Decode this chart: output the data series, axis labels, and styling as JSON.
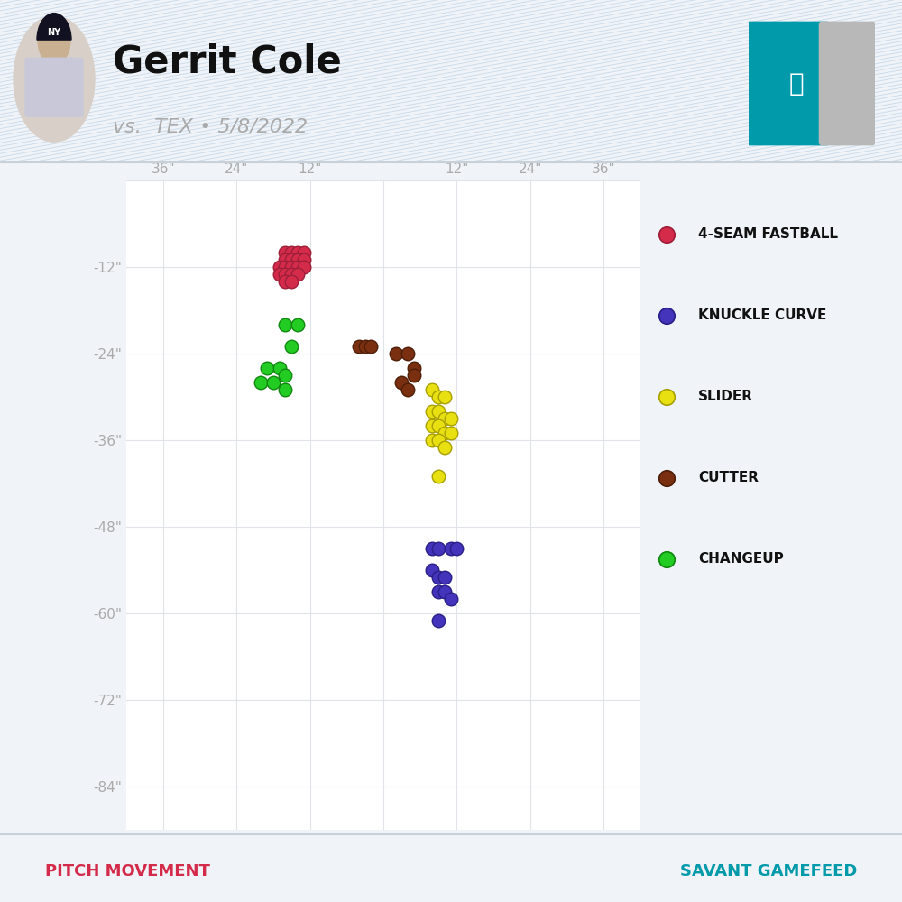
{
  "title": "Gerrit Cole",
  "subtitle": "vs.  TEX • 5/8/2022",
  "pitch_movement_label": "PITCH MOVEMENT",
  "savant_label": "SAVANT GAMEFEED",
  "background_color": "#f0f4f8",
  "header_bg_color": "#e8eef5",
  "plot_bg_color": "#ffffff",
  "stripe_color": "#b0c8e0",
  "separator_color": "#c8d0d8",
  "x_ticks": [
    -36,
    -24,
    -12,
    0,
    12,
    24,
    36
  ],
  "x_tick_labels": [
    "36\"",
    "24\"",
    "12\"",
    "",
    "12\"",
    "24\"",
    "36\""
  ],
  "y_ticks": [
    -84,
    -72,
    -60,
    -48,
    -36,
    -24,
    -12,
    0
  ],
  "y_tick_labels": [
    "-84\"",
    "-72\"",
    "-60\"",
    "-48\"",
    "-36\"",
    "-24\"",
    "-12\"",
    ""
  ],
  "xlim": [
    -42,
    42
  ],
  "ylim": [
    -90,
    0
  ],
  "pitch_types": {
    "4-SEAM FASTBALL": {
      "color": "#d42b4b",
      "edge_color": "#9e1f38",
      "points": [
        [
          -16,
          -10
        ],
        [
          -15,
          -10
        ],
        [
          -14,
          -10
        ],
        [
          -13,
          -10
        ],
        [
          -16,
          -11
        ],
        [
          -15,
          -11
        ],
        [
          -14,
          -11
        ],
        [
          -13,
          -11
        ],
        [
          -17,
          -12
        ],
        [
          -16,
          -12
        ],
        [
          -15,
          -12
        ],
        [
          -14,
          -12
        ],
        [
          -13,
          -12
        ],
        [
          -17,
          -13
        ],
        [
          -16,
          -13
        ],
        [
          -15,
          -13
        ],
        [
          -14,
          -13
        ],
        [
          -16,
          -14
        ],
        [
          -15,
          -14
        ]
      ]
    },
    "KNUCKLE CURVE": {
      "color": "#4433bb",
      "edge_color": "#2a1f88",
      "points": [
        [
          8,
          -51
        ],
        [
          9,
          -51
        ],
        [
          11,
          -51
        ],
        [
          12,
          -51
        ],
        [
          8,
          -54
        ],
        [
          9,
          -55
        ],
        [
          10,
          -55
        ],
        [
          9,
          -57
        ],
        [
          10,
          -57
        ],
        [
          11,
          -58
        ],
        [
          9,
          -61
        ]
      ]
    },
    "SLIDER": {
      "color": "#e8e010",
      "edge_color": "#a8a000",
      "points": [
        [
          8,
          -29
        ],
        [
          9,
          -30
        ],
        [
          10,
          -30
        ],
        [
          8,
          -32
        ],
        [
          9,
          -32
        ],
        [
          10,
          -33
        ],
        [
          11,
          -33
        ],
        [
          8,
          -34
        ],
        [
          9,
          -34
        ],
        [
          10,
          -35
        ],
        [
          11,
          -35
        ],
        [
          8,
          -36
        ],
        [
          9,
          -36
        ],
        [
          10,
          -37
        ],
        [
          9,
          -41
        ]
      ]
    },
    "CUTTER": {
      "color": "#7a3010",
      "edge_color": "#4e1e08",
      "points": [
        [
          -4,
          -23
        ],
        [
          -3,
          -23
        ],
        [
          -2,
          -23
        ],
        [
          2,
          -24
        ],
        [
          4,
          -24
        ],
        [
          5,
          -26
        ],
        [
          3,
          -28
        ],
        [
          5,
          -27
        ],
        [
          4,
          -29
        ]
      ]
    },
    "CHANGEUP": {
      "color": "#22cc22",
      "edge_color": "#108810",
      "points": [
        [
          -16,
          -20
        ],
        [
          -14,
          -20
        ],
        [
          -15,
          -23
        ],
        [
          -19,
          -26
        ],
        [
          -17,
          -26
        ],
        [
          -16,
          -27
        ],
        [
          -20,
          -28
        ],
        [
          -18,
          -28
        ],
        [
          -16,
          -29
        ]
      ]
    }
  },
  "legend_order": [
    "4-SEAM FASTBALL",
    "KNUCKLE CURVE",
    "SLIDER",
    "CUTTER",
    "CHANGEUP"
  ],
  "marker_size": 110,
  "grid_color": "#e0e4e8",
  "tick_color": "#aaaaaa",
  "tick_fontsize": 11,
  "title_color": "#111111",
  "subtitle_color": "#aaaaaa",
  "pitch_movement_color": "#d42b4b",
  "savant_color": "#009aaa",
  "teal_logo": "#009aaa",
  "gray_logo": "#b8b8b8"
}
